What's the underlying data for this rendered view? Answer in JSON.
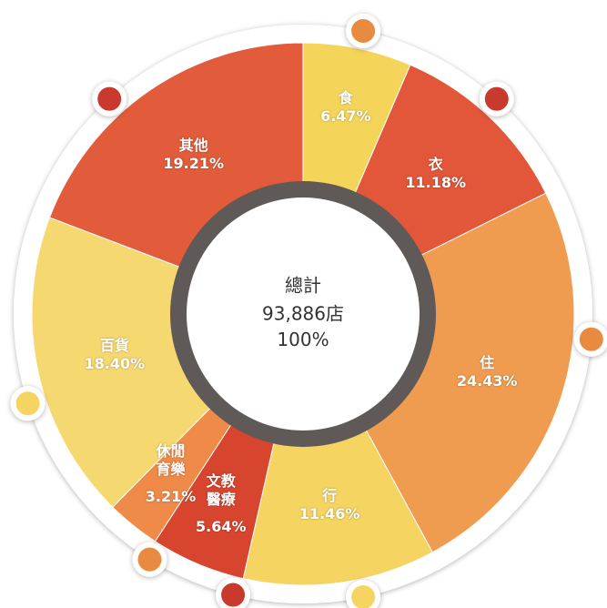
{
  "chart_data": {
    "type": "pie",
    "categories": [
      "食",
      "衣",
      "住",
      "行",
      "文教\n醫療",
      "休閒\n育樂",
      "百貨",
      "其他"
    ],
    "values": [
      6.47,
      11.18,
      24.43,
      11.46,
      5.64,
      3.21,
      18.4,
      19.21
    ],
    "value_labels": [
      "6.47%",
      "11.18%",
      "24.43%",
      "11.46%",
      "5.64%",
      "3.21%",
      "18.40%",
      "19.21%"
    ],
    "colors": [
      "#f4d55a",
      "#e2563a",
      "#f09c50",
      "#f5d462",
      "#d8452e",
      "#ef8a48",
      "#f6d870",
      "#e25c3b"
    ],
    "center": {
      "title": "總計",
      "total": "93,886店",
      "percent": "100%"
    }
  }
}
